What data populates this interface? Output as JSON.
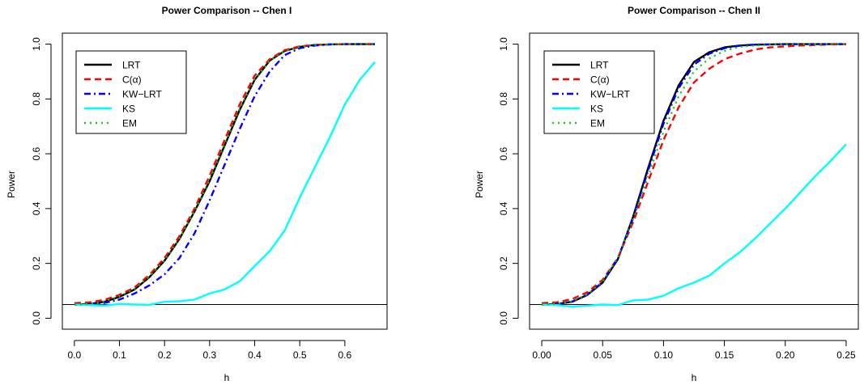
{
  "chart_data": [
    {
      "type": "line",
      "title": "Power Comparison -- Chen I",
      "xlabel": "h",
      "ylabel": "Power",
      "xlim": [
        0.0,
        0.667
      ],
      "ylim": [
        0.0,
        1.0
      ],
      "xticks": [
        0.0,
        0.1,
        0.2,
        0.3,
        0.4,
        0.5,
        0.6
      ],
      "xtick_labels": [
        "0.0",
        "0.1",
        "0.2",
        "0.3",
        "0.4",
        "0.5",
        "0.6"
      ],
      "yticks": [
        0.0,
        0.2,
        0.4,
        0.6,
        0.8,
        1.0
      ],
      "ytick_labels": [
        "0.0",
        "0.2",
        "0.4",
        "0.6",
        "0.8",
        "1.0"
      ],
      "hline": 0.05,
      "legend_position": "top-left",
      "grid": false,
      "x": [
        0.0,
        0.0333,
        0.0667,
        0.1,
        0.1333,
        0.1667,
        0.2,
        0.2333,
        0.2667,
        0.3,
        0.3333,
        0.3667,
        0.4,
        0.4333,
        0.4667,
        0.5,
        0.5333,
        0.5667,
        0.6,
        0.6333,
        0.6667
      ],
      "series": [
        {
          "name": "LRT",
          "color": "#000000",
          "dash": "",
          "width": 2.4,
          "values": [
            0.05,
            0.052,
            0.06,
            0.078,
            0.105,
            0.15,
            0.21,
            0.29,
            0.39,
            0.5,
            0.63,
            0.76,
            0.87,
            0.94,
            0.975,
            0.99,
            0.997,
            0.999,
            1.0,
            1.0,
            1.0
          ]
        },
        {
          "name": "C(α)",
          "color": "#ff0000",
          "dash": "8,5",
          "width": 2.4,
          "values": [
            0.055,
            0.058,
            0.067,
            0.085,
            0.112,
            0.158,
            0.22,
            0.3,
            0.4,
            0.52,
            0.65,
            0.78,
            0.885,
            0.945,
            0.978,
            0.992,
            0.997,
            0.999,
            1.0,
            1.0,
            1.0
          ]
        },
        {
          "name": "KW−LRT",
          "color": "#0000ff",
          "dash": "8,4,2,4",
          "width": 2.4,
          "values": [
            0.05,
            0.051,
            0.056,
            0.068,
            0.09,
            0.12,
            0.16,
            0.22,
            0.31,
            0.43,
            0.56,
            0.69,
            0.81,
            0.9,
            0.96,
            0.985,
            0.995,
            0.999,
            1.0,
            1.0,
            1.0
          ]
        },
        {
          "name": "KS",
          "color": "#00ffff",
          "dash": "",
          "width": 2.4,
          "values": [
            0.05,
            0.048,
            0.046,
            0.052,
            0.05,
            0.049,
            0.06,
            0.062,
            0.068,
            0.09,
            0.105,
            0.135,
            0.19,
            0.245,
            0.32,
            0.44,
            0.55,
            0.66,
            0.78,
            0.87,
            0.935
          ]
        },
        {
          "name": "EM",
          "color": "#00cd00",
          "dash": "2,5",
          "width": 2.2,
          "values": [
            0.05,
            0.053,
            0.062,
            0.08,
            0.107,
            0.152,
            0.212,
            0.292,
            0.39,
            0.505,
            0.635,
            0.765,
            0.872,
            0.94,
            0.975,
            0.99,
            0.997,
            0.999,
            1.0,
            1.0,
            1.0
          ]
        }
      ]
    },
    {
      "type": "line",
      "title": "Power Comparison -- Chen II",
      "xlabel": "h",
      "ylabel": "Power",
      "xlim": [
        0.0,
        0.25
      ],
      "ylim": [
        0.0,
        1.0
      ],
      "xticks": [
        0.0,
        0.05,
        0.1,
        0.15,
        0.2,
        0.25
      ],
      "xtick_labels": [
        "0.00",
        "0.05",
        "0.10",
        "0.15",
        "0.20",
        "0.25"
      ],
      "yticks": [
        0.0,
        0.2,
        0.4,
        0.6,
        0.8,
        1.0
      ],
      "ytick_labels": [
        "0.0",
        "0.2",
        "0.4",
        "0.6",
        "0.8",
        "1.0"
      ],
      "hline": 0.05,
      "legend_position": "top-left",
      "grid": false,
      "x": [
        0.0,
        0.0125,
        0.025,
        0.0375,
        0.05,
        0.0625,
        0.075,
        0.0875,
        0.1,
        0.1125,
        0.125,
        0.1375,
        0.15,
        0.1625,
        0.175,
        0.1875,
        0.2,
        0.2125,
        0.225,
        0.2375,
        0.25
      ],
      "series": [
        {
          "name": "LRT",
          "color": "#000000",
          "dash": "",
          "width": 2.4,
          "values": [
            0.05,
            0.052,
            0.06,
            0.085,
            0.13,
            0.215,
            0.37,
            0.55,
            0.72,
            0.85,
            0.935,
            0.97,
            0.988,
            0.995,
            0.998,
            0.999,
            1.0,
            1.0,
            1.0,
            1.0,
            1.0
          ]
        },
        {
          "name": "C(α)",
          "color": "#ff0000",
          "dash": "8,5",
          "width": 2.4,
          "values": [
            0.055,
            0.058,
            0.07,
            0.095,
            0.14,
            0.22,
            0.35,
            0.5,
            0.65,
            0.77,
            0.86,
            0.91,
            0.945,
            0.965,
            0.98,
            0.988,
            0.992,
            0.995,
            0.997,
            0.999,
            1.0
          ]
        },
        {
          "name": "KW−LRT",
          "color": "#0000ff",
          "dash": "8,4,2,4",
          "width": 2.4,
          "values": [
            0.05,
            0.052,
            0.061,
            0.086,
            0.132,
            0.218,
            0.365,
            0.54,
            0.71,
            0.84,
            0.925,
            0.965,
            0.985,
            0.994,
            0.998,
            0.999,
            1.0,
            1.0,
            1.0,
            1.0,
            1.0
          ]
        },
        {
          "name": "KS",
          "color": "#00ffff",
          "dash": "",
          "width": 2.4,
          "values": [
            0.05,
            0.048,
            0.042,
            0.046,
            0.05,
            0.048,
            0.065,
            0.068,
            0.082,
            0.11,
            0.13,
            0.155,
            0.2,
            0.24,
            0.29,
            0.345,
            0.4,
            0.46,
            0.52,
            0.575,
            0.635
          ]
        },
        {
          "name": "EM",
          "color": "#00cd00",
          "dash": "2,5",
          "width": 2.2,
          "values": [
            0.05,
            0.053,
            0.062,
            0.087,
            0.134,
            0.22,
            0.36,
            0.52,
            0.68,
            0.81,
            0.9,
            0.948,
            0.975,
            0.99,
            0.995,
            0.998,
            0.999,
            1.0,
            1.0,
            1.0,
            1.0
          ]
        }
      ]
    }
  ]
}
